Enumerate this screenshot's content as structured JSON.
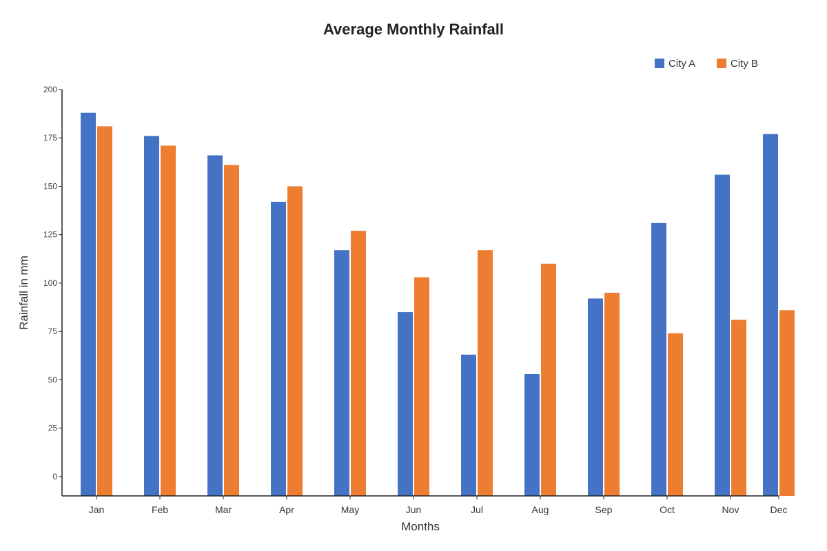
{
  "chart_data": {
    "type": "bar",
    "title": "Average Monthly Rainfall",
    "xlabel": "Months",
    "ylabel": "Rainfall in mm",
    "categories": [
      "Jan",
      "Feb",
      "Mar",
      "Apr",
      "May",
      "Jun",
      "Jul",
      "Aug",
      "Sep",
      "Oct",
      "Nov",
      "Dec"
    ],
    "series": [
      {
        "name": "City A",
        "color": "#4472c4",
        "values": [
          188,
          176,
          166,
          142,
          117,
          85,
          63,
          53,
          92,
          131,
          156,
          177
        ]
      },
      {
        "name": "City B",
        "color": "#ed7d31",
        "values": [
          181,
          171,
          161,
          150,
          127,
          103,
          117,
          110,
          95,
          74,
          81,
          86
        ]
      }
    ],
    "yticks": [
      0,
      25,
      50,
      75,
      100,
      125,
      150,
      175,
      200
    ],
    "ylim": [
      -10,
      200
    ],
    "grid": false,
    "legend_position": "top-right"
  }
}
